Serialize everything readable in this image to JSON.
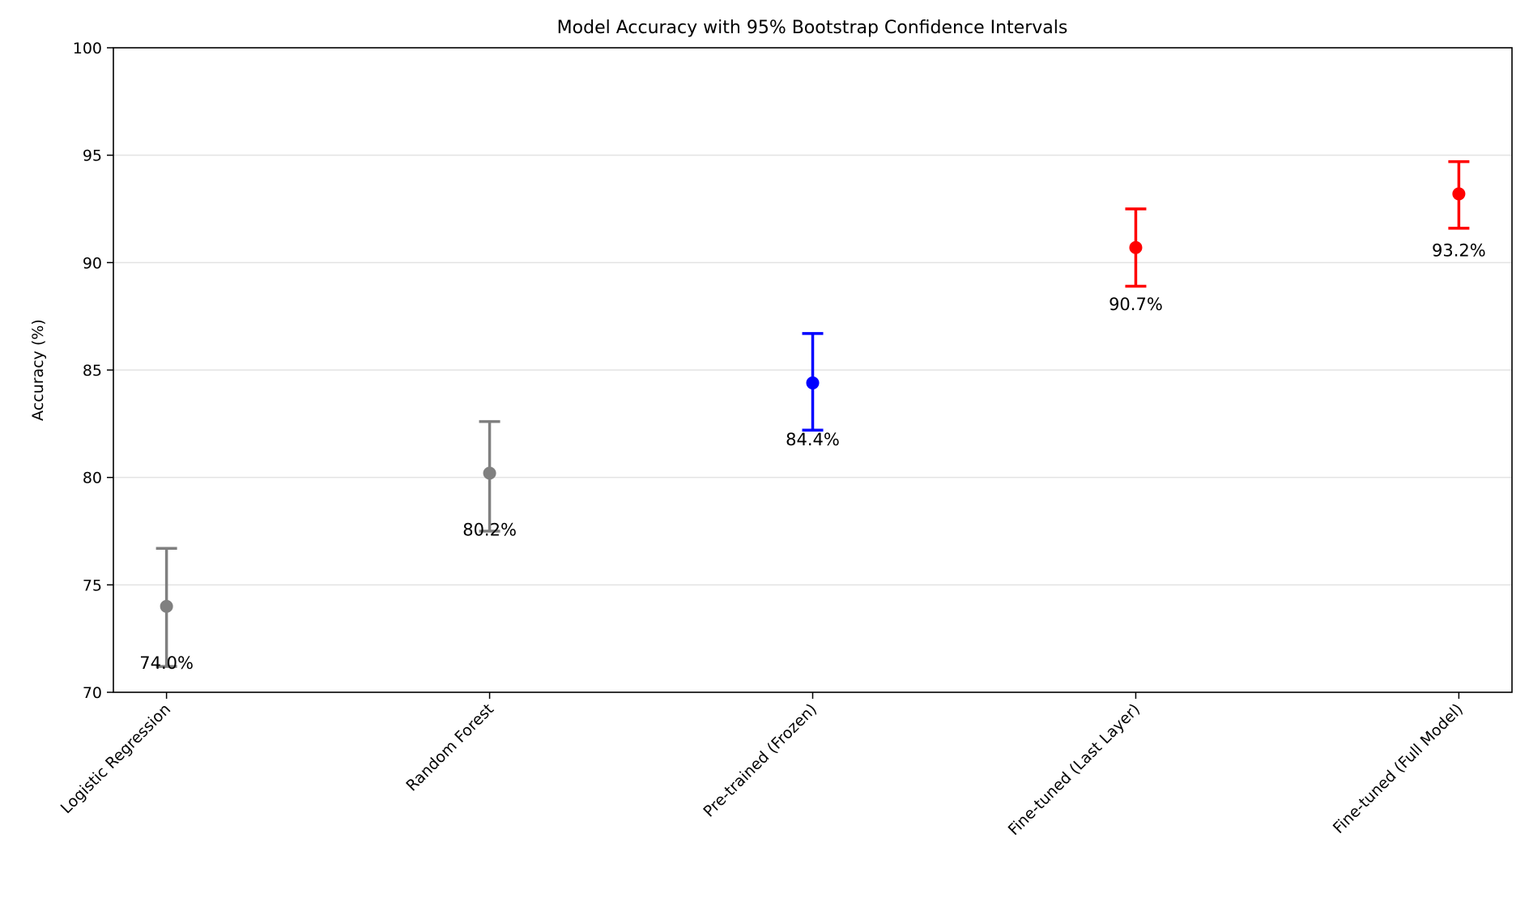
{
  "chart_data": {
    "type": "errorbar",
    "title": "Model Accuracy with 95% Bootstrap Confidence Intervals",
    "xlabel": "",
    "ylabel": "Accuracy (%)",
    "ylim": [
      70,
      100
    ],
    "yticks": [
      70,
      75,
      80,
      85,
      90,
      95,
      100
    ],
    "grid": "y",
    "categories": [
      "Logistic Regression",
      "Random Forest",
      "Pre-trained (Frozen)",
      "Fine-tuned (Last Layer)",
      "Fine-tuned (Full Model)"
    ],
    "values": [
      74.0,
      80.2,
      84.4,
      90.7,
      93.2
    ],
    "ci_lower": [
      71.2,
      77.5,
      82.2,
      88.9,
      91.6
    ],
    "ci_upper": [
      76.7,
      82.6,
      86.7,
      92.5,
      94.7
    ],
    "labels": [
      "74.0%",
      "80.2%",
      "84.4%",
      "90.7%",
      "93.2%"
    ],
    "colors": [
      "#808080",
      "#808080",
      "#0000ff",
      "#ff0000",
      "#ff0000"
    ]
  }
}
